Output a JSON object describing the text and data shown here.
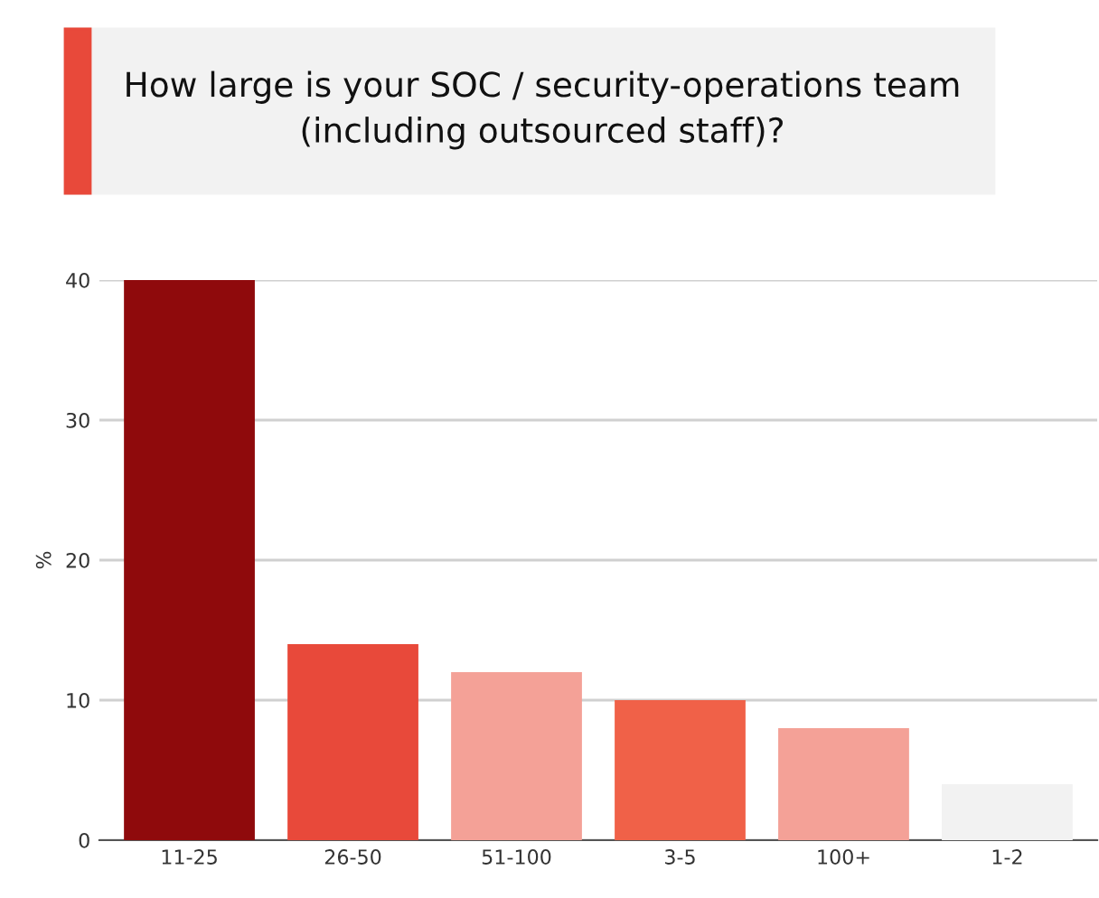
{
  "chart_data": {
    "type": "bar",
    "title": "How large is your SOC / security-operations team\n(including outsourced staff)?",
    "ylabel": "%",
    "categories": [
      "11-25",
      "26-50",
      "51-100",
      "3-5",
      "100+",
      "1-2"
    ],
    "values": [
      40,
      14,
      12,
      10,
      8,
      4
    ],
    "colors": [
      "#8f0a0c",
      "#e8493a",
      "#f4a197",
      "#f06148",
      "#f4a197",
      "#f2f2f2"
    ],
    "ylim": [
      0,
      40
    ],
    "yticks": [
      0,
      10,
      20,
      30,
      40
    ],
    "grid": "y",
    "legend": false
  }
}
